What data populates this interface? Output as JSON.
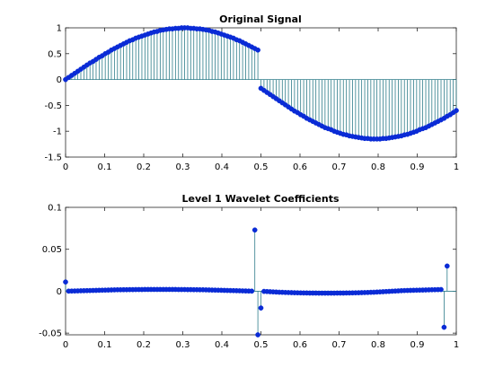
{
  "figure": {
    "background": "#ffffff",
    "stem_color": "#2e7d8a",
    "marker_color": "#0a2bd6",
    "axis_color": "#262626"
  },
  "chart_data": [
    {
      "type": "stem",
      "title": "Original Signal",
      "xlabel": "",
      "ylabel": "",
      "xlim": [
        0,
        1
      ],
      "ylim": [
        -1.5,
        1
      ],
      "grid": false,
      "x_ticks": [
        0,
        0.1,
        0.2,
        0.3,
        0.4,
        0.5,
        0.6,
        0.7,
        0.8,
        0.9,
        1
      ],
      "x_tick_labels": [
        "0",
        "0.1",
        "0.2",
        "0.3",
        "0.4",
        "0.5",
        "0.6",
        "0.7",
        "0.8",
        "0.9",
        "1"
      ],
      "y_ticks": [
        -1.5,
        -1,
        -0.5,
        0,
        0.5,
        1
      ],
      "y_tick_labels": [
        "-1.5",
        "-1",
        "-0.5",
        "0",
        "0.5",
        "1"
      ],
      "series": [
        {
          "x_start": 0,
          "x_step": 0.0078125,
          "y": [
            0,
            0.04,
            0.08,
            0.12,
            0.16,
            0.2,
            0.24,
            0.28,
            0.32,
            0.35,
            0.39,
            0.43,
            0.46,
            0.5,
            0.53,
            0.57,
            0.6,
            0.63,
            0.66,
            0.69,
            0.72,
            0.75,
            0.77,
            0.8,
            0.82,
            0.84,
            0.86,
            0.88,
            0.9,
            0.92,
            0.93,
            0.95,
            0.96,
            0.97,
            0.98,
            0.98,
            0.99,
            0.99,
            1.0,
            1.0,
            1.0,
            0.99,
            0.99,
            0.98,
            0.98,
            0.97,
            0.96,
            0.95,
            0.93,
            0.92,
            0.9,
            0.88,
            0.86,
            0.84,
            0.82,
            0.8,
            0.77,
            0.75,
            0.72,
            0.69,
            0.66,
            0.63,
            0.6,
            0.57,
            -0.17,
            -0.21,
            -0.25,
            -0.29,
            -0.33,
            -0.37,
            -0.41,
            -0.45,
            -0.49,
            -0.53,
            -0.57,
            -0.61,
            -0.64,
            -0.68,
            -0.71,
            -0.75,
            -0.78,
            -0.81,
            -0.84,
            -0.87,
            -0.9,
            -0.93,
            -0.95,
            -0.97,
            -1.0,
            -1.02,
            -1.04,
            -1.06,
            -1.07,
            -1.09,
            -1.1,
            -1.11,
            -1.12,
            -1.13,
            -1.14,
            -1.14,
            -1.15,
            -1.15,
            -1.15,
            -1.15,
            -1.14,
            -1.14,
            -1.13,
            -1.12,
            -1.11,
            -1.1,
            -1.09,
            -1.07,
            -1.06,
            -1.04,
            -1.02,
            -1.0,
            -0.97,
            -0.95,
            -0.93,
            -0.9,
            -0.87,
            -0.84,
            -0.81,
            -0.78,
            -0.75,
            -0.71,
            -0.68,
            -0.64,
            -0.6
          ]
        }
      ]
    },
    {
      "type": "stem",
      "title": "Level 1 Wavelet Coefficients",
      "xlabel": "",
      "ylabel": "",
      "xlim": [
        0,
        1
      ],
      "ylim": [
        -0.052,
        0.1
      ],
      "grid": false,
      "x_ticks": [
        0,
        0.1,
        0.2,
        0.3,
        0.4,
        0.5,
        0.6,
        0.7,
        0.8,
        0.9,
        1
      ],
      "x_tick_labels": [
        "0",
        "0.1",
        "0.2",
        "0.3",
        "0.4",
        "0.5",
        "0.6",
        "0.7",
        "0.8",
        "0.9",
        "1"
      ],
      "y_ticks": [
        -0.05,
        0,
        0.05,
        0.1
      ],
      "y_tick_labels": [
        "-0.05",
        "0",
        "0.05",
        "0.1"
      ],
      "series": [
        {
          "x_start": 0,
          "x_step": 0.0078125,
          "y": [
            0.011,
            0.0001,
            0.0002,
            0.0003,
            0.0004,
            0.0005,
            0.0006,
            0.0007,
            0.0008,
            0.0009,
            0.001,
            0.0011,
            0.0012,
            0.0013,
            0.0014,
            0.0015,
            0.0016,
            0.0017,
            0.0017,
            0.0018,
            0.0018,
            0.0019,
            0.0019,
            0.002,
            0.002,
            0.002,
            0.0021,
            0.0021,
            0.0021,
            0.0021,
            0.0021,
            0.0021,
            0.0021,
            0.0021,
            0.0021,
            0.0021,
            0.0021,
            0.002,
            0.002,
            0.002,
            0.0019,
            0.0019,
            0.0018,
            0.0018,
            0.0017,
            0.0017,
            0.0016,
            0.0015,
            0.0014,
            0.0013,
            0.0012,
            0.0011,
            0.001,
            0.0009,
            0.0008,
            0.0007,
            0.0006,
            0.0005,
            0.0004,
            0.0003,
            0.0002,
            0.0001,
            0.073,
            -0.052,
            -0.02,
            -0.0002,
            -0.0004,
            -0.0006,
            -0.0008,
            -0.001,
            -0.0012,
            -0.0013,
            -0.0015,
            -0.0016,
            -0.0017,
            -0.0018,
            -0.0019,
            -0.002,
            -0.0021,
            -0.0021,
            -0.0022,
            -0.0022,
            -0.0022,
            -0.0023,
            -0.0023,
            -0.0023,
            -0.0023,
            -0.0023,
            -0.0023,
            -0.0022,
            -0.0022,
            -0.0022,
            -0.0021,
            -0.0021,
            -0.002,
            -0.0019,
            -0.0018,
            -0.0017,
            -0.0016,
            -0.0015,
            -0.0013,
            -0.0012,
            -0.001,
            -0.0008,
            -0.0006,
            -0.0004,
            -0.0002,
            0.0,
            0.0002,
            0.0004,
            0.0006,
            0.0008,
            0.0009,
            0.001,
            0.0011,
            0.0012,
            0.0013,
            0.0014,
            0.0015,
            0.0016,
            0.0017,
            0.0018,
            0.0019,
            0.002,
            -0.043,
            0.03
          ]
        }
      ]
    }
  ]
}
